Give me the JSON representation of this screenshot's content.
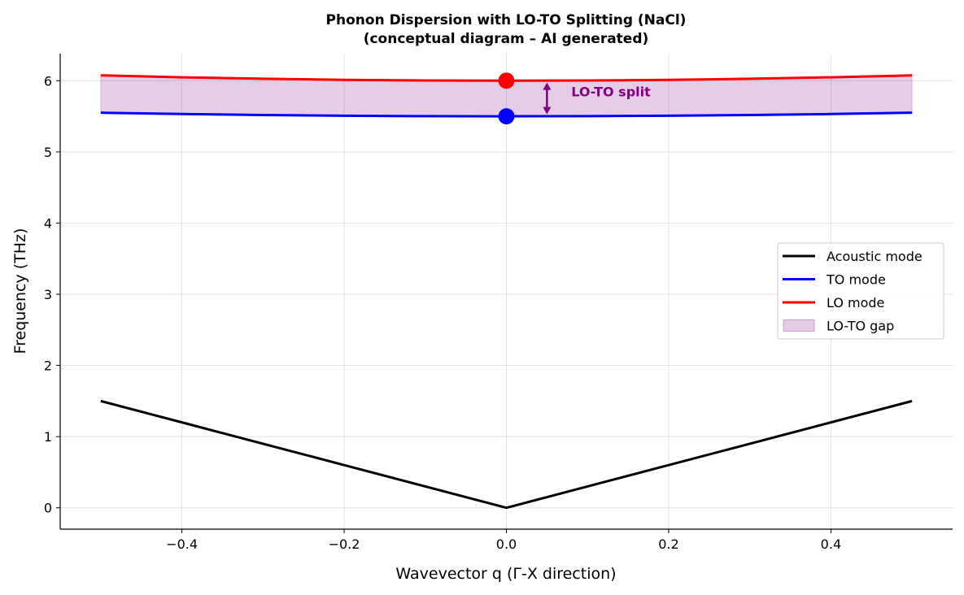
{
  "chart_data": {
    "type": "line",
    "title": "Phonon Dispersion with LO-TO Splitting (NaCl)",
    "subtitle": "(conceptual diagram – AI generated)",
    "xlabel": "Wavevector q (Γ-X direction)",
    "ylabel": "Frequency (THz)",
    "xlim": [
      -0.55,
      0.55
    ],
    "ylim": [
      -0.3,
      6.38
    ],
    "xticks": [
      -0.4,
      -0.2,
      0.0,
      0.2,
      0.4
    ],
    "xtick_labels": [
      "−0.4",
      "−0.2",
      "0.0",
      "0.2",
      "0.4"
    ],
    "yticks": [
      0,
      1,
      2,
      3,
      4,
      5,
      6
    ],
    "ytick_labels": [
      "0",
      "1",
      "2",
      "3",
      "4",
      "5",
      "6"
    ],
    "grid": true,
    "legend_position": "center-right",
    "x": [
      -0.5,
      -0.4,
      -0.3,
      -0.2,
      -0.1,
      0,
      0.1,
      0.2,
      0.3,
      0.4,
      0.5
    ],
    "series": [
      {
        "name": "Acoustic mode",
        "color": "#000000",
        "values": [
          1.5,
          1.2,
          0.9,
          0.6,
          0.3,
          0,
          0.3,
          0.6,
          0.9,
          1.2,
          1.5
        ]
      },
      {
        "name": "TO mode",
        "color": "#0000ff",
        "values": [
          5.55,
          5.532,
          5.518,
          5.508,
          5.502,
          5.5,
          5.502,
          5.508,
          5.518,
          5.532,
          5.55
        ]
      },
      {
        "name": "LO mode",
        "color": "#ff0000",
        "values": [
          6.075,
          6.048,
          6.027,
          6.012,
          6.003,
          6.0,
          6.003,
          6.012,
          6.027,
          6.048,
          6.075
        ]
      }
    ],
    "fill": {
      "name": "LO-TO gap",
      "color": "#800080",
      "between": [
        "TO mode",
        "LO mode"
      ]
    },
    "markers": [
      {
        "x": 0,
        "y": 6.0,
        "color": "#ff0000"
      },
      {
        "x": 0,
        "y": 5.5,
        "color": "#0000ff"
      }
    ],
    "annotation": {
      "text": "LO-TO split",
      "color": "#800080",
      "arrow_x": 0.05,
      "arrow_from": 5.55,
      "arrow_to": 5.95,
      "text_x": 0.08,
      "text_y": 5.85
    }
  }
}
